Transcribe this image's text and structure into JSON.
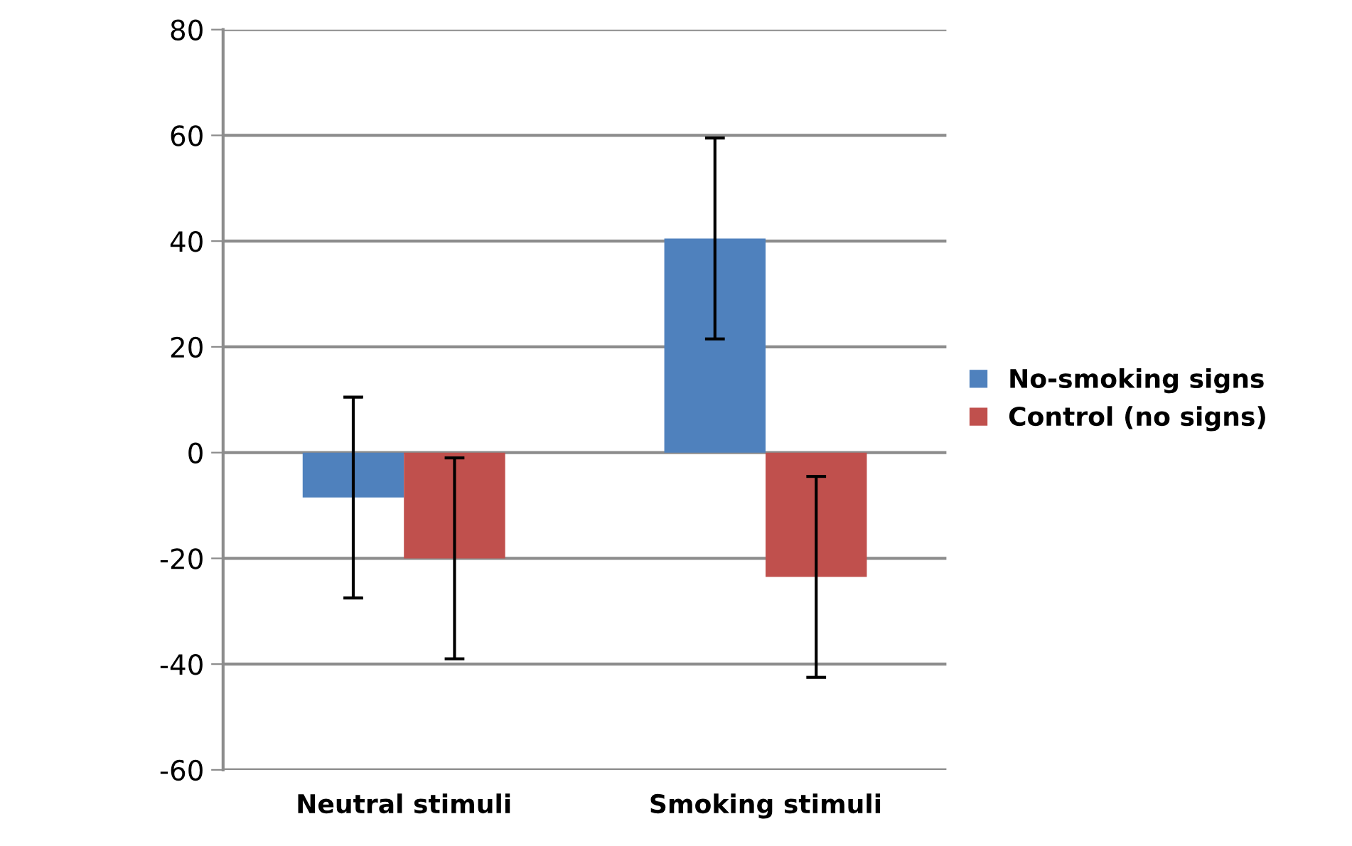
{
  "chart_data": {
    "type": "bar",
    "categories": [
      "Neutral stimuli",
      "Smoking stimuli"
    ],
    "series": [
      {
        "name": "No-smoking signs",
        "color": "#4f81bd",
        "values": [
          -8.5,
          40.5
        ],
        "errors": [
          19,
          19
        ]
      },
      {
        "name": "Control (no signs)",
        "color": "#c0504d",
        "values": [
          -20,
          -23.5
        ],
        "errors": [
          19,
          19
        ]
      }
    ],
    "ylim": [
      -60,
      80
    ],
    "yticks": [
      -60,
      -40,
      -20,
      0,
      20,
      40,
      60,
      80
    ],
    "grid": "y",
    "legend": "right"
  }
}
